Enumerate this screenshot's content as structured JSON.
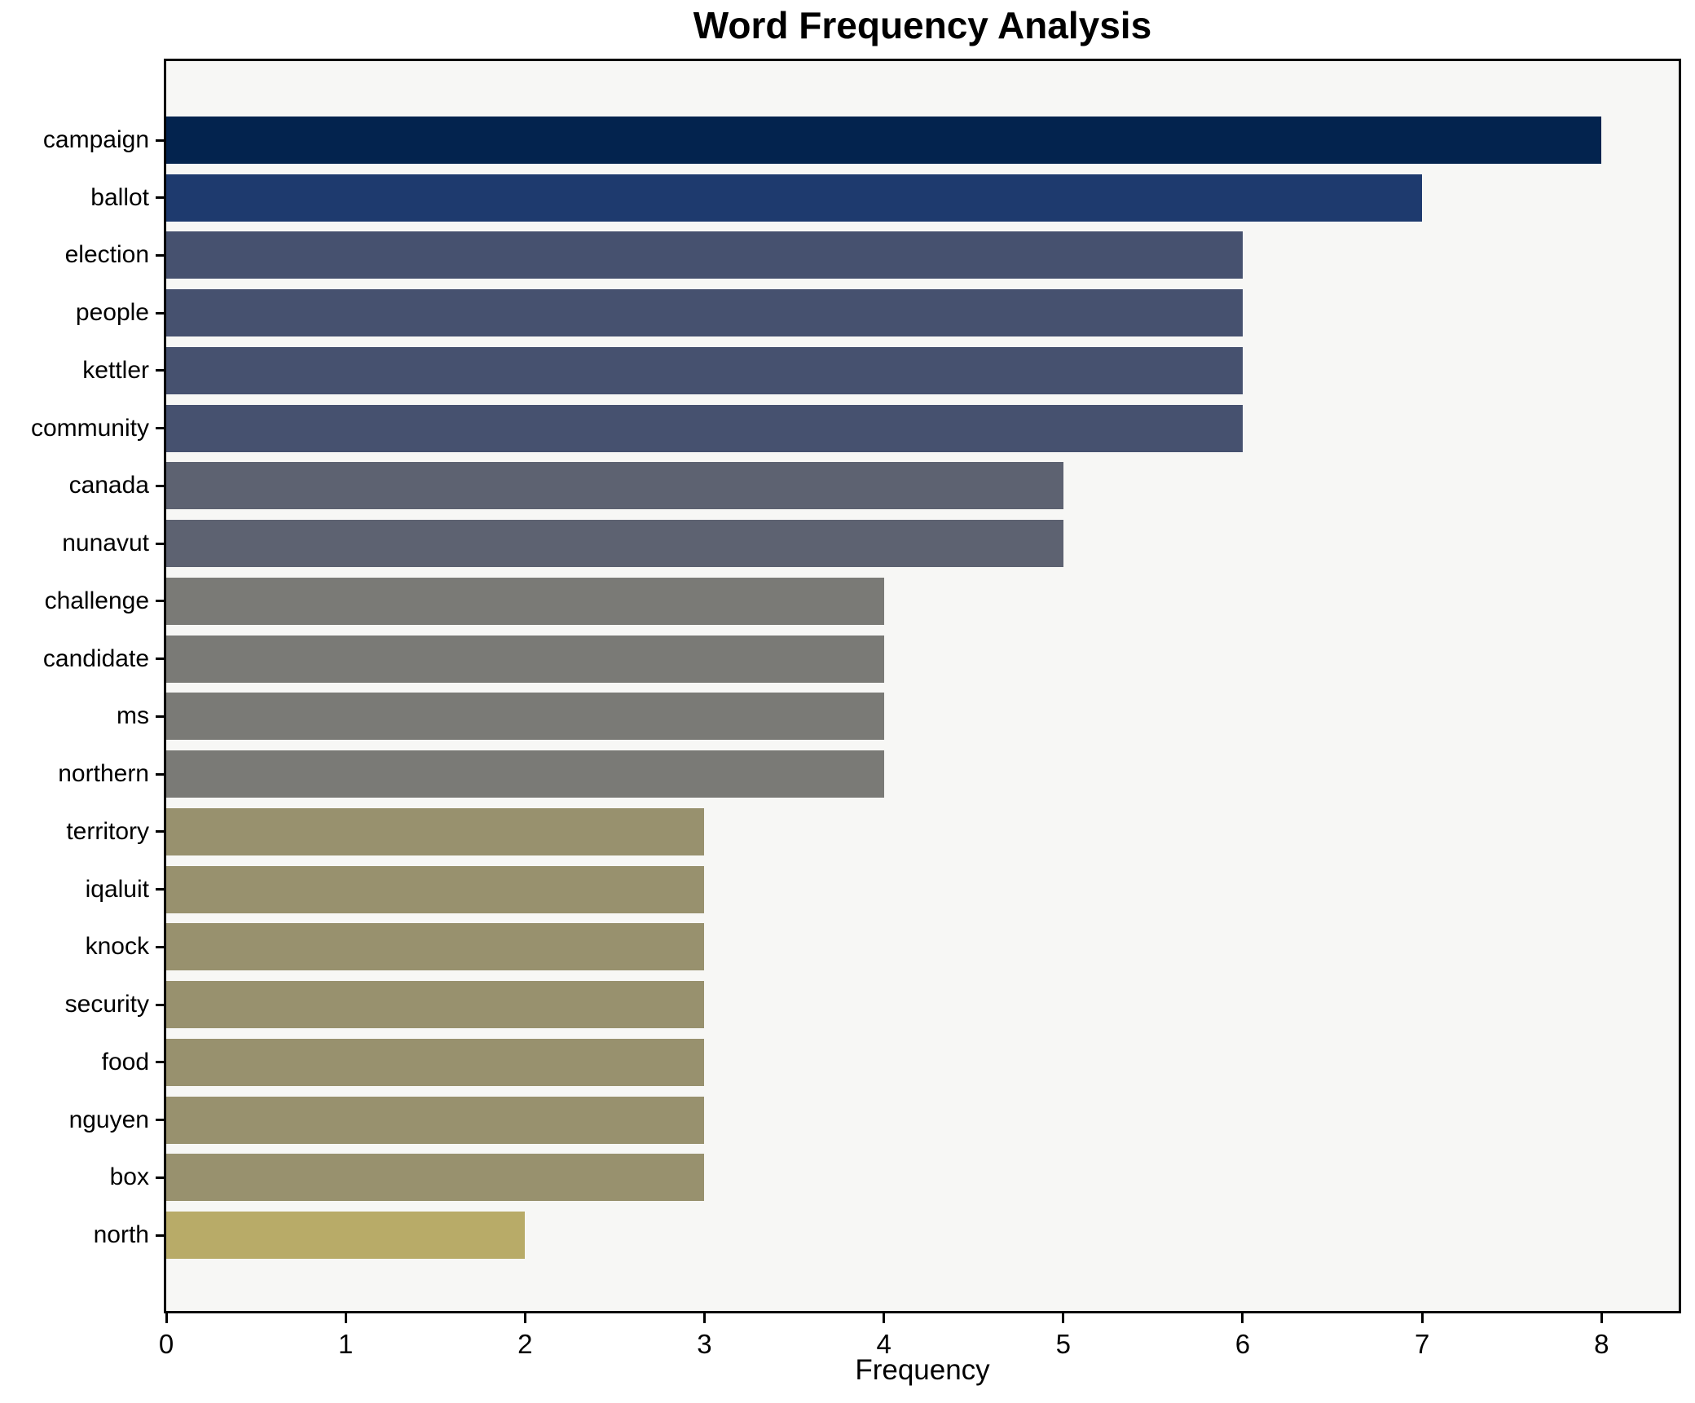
{
  "chart_data": {
    "type": "bar",
    "orientation": "horizontal",
    "title": "Word Frequency Analysis",
    "xlabel": "Frequency",
    "ylabel": "",
    "categories": [
      "campaign",
      "ballot",
      "election",
      "people",
      "kettler",
      "community",
      "canada",
      "nunavut",
      "challenge",
      "candidate",
      "ms",
      "northern",
      "territory",
      "iqaluit",
      "knock",
      "security",
      "food",
      "nguyen",
      "box",
      "north"
    ],
    "values": [
      8,
      7,
      6,
      6,
      6,
      6,
      5,
      5,
      4,
      4,
      4,
      4,
      3,
      3,
      3,
      3,
      3,
      3,
      3,
      2
    ],
    "bar_colors": [
      "#03234e",
      "#1e3a6e",
      "#46516f",
      "#46516f",
      "#46516f",
      "#46516f",
      "#5d6271",
      "#5d6271",
      "#7a7a76",
      "#7a7a76",
      "#7a7a76",
      "#7a7a76",
      "#98916e",
      "#98916e",
      "#98916e",
      "#98916e",
      "#98916e",
      "#98916e",
      "#98916e",
      "#b8ab68"
    ],
    "xticks": [
      0,
      1,
      2,
      3,
      4,
      5,
      6,
      7,
      8
    ],
    "xlim": [
      0,
      8.43
    ],
    "grid": false,
    "legend_position": "none",
    "colors": {
      "figure_bg": "#ffffff",
      "axes_bg": "#f7f7f5",
      "spine": "#000000",
      "text": "#000000"
    }
  }
}
